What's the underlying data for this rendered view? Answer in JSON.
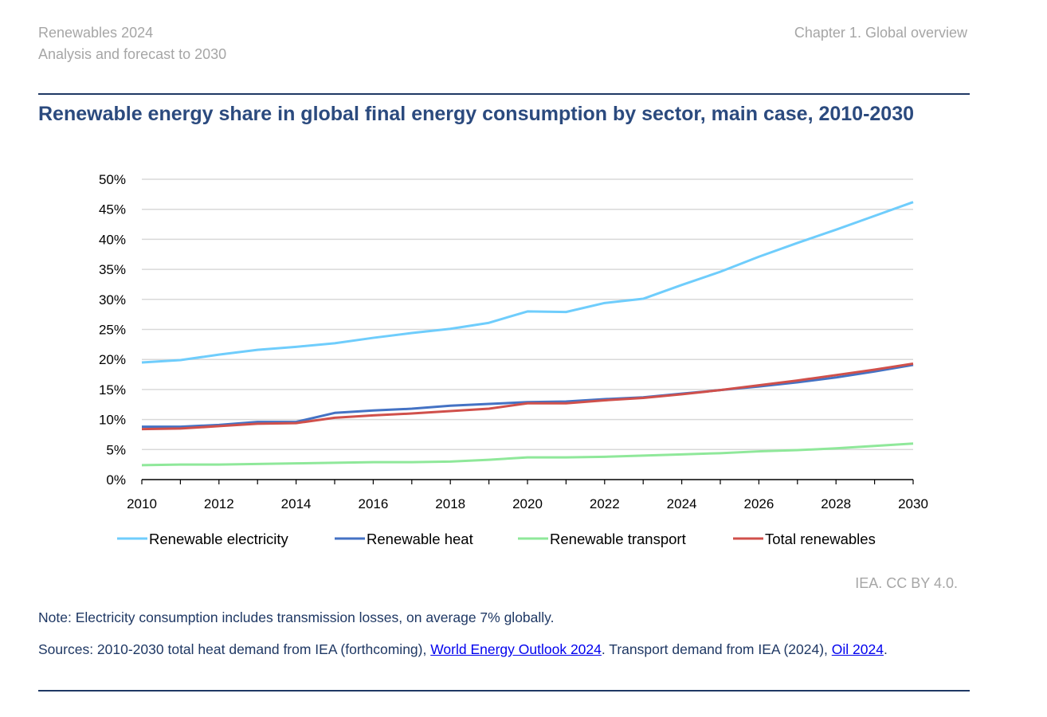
{
  "header": {
    "left_line1": "Renewables 2024",
    "left_line2": "Analysis and forecast to 2030",
    "right": "Chapter 1. Global overview"
  },
  "credit": "IEA. CC BY 4.0.",
  "note": "Note: Electricity consumption includes transmission losses, on average 7% globally.",
  "sources": {
    "prefix": "Sources: 2010-2030 total heat demand from IEA (forthcoming), ",
    "link1": "World Energy Outlook 2024",
    "middle": ". Transport demand from IEA (2024), ",
    "link2": "Oil 2024",
    "suffix": "."
  },
  "chart_data": {
    "type": "line",
    "title": "Renewable energy share in global final energy consumption by sector, main case, 2010-2030",
    "xlabel": "",
    "ylabel": "",
    "x": [
      2010,
      2011,
      2012,
      2013,
      2014,
      2015,
      2016,
      2017,
      2018,
      2019,
      2020,
      2021,
      2022,
      2023,
      2024,
      2025,
      2026,
      2027,
      2028,
      2029,
      2030
    ],
    "xticks": [
      "2010",
      "2012",
      "2014",
      "2016",
      "2018",
      "2020",
      "2022",
      "2024",
      "2026",
      "2028",
      "2030"
    ],
    "yticks": [
      "0%",
      "5%",
      "10%",
      "15%",
      "20%",
      "25%",
      "30%",
      "35%",
      "40%",
      "45%",
      "50%"
    ],
    "ylim": [
      0,
      50
    ],
    "grid": true,
    "legend_position": "bottom",
    "series": [
      {
        "name": "Renewable electricity",
        "color": "#6fcdfc",
        "values": [
          19.5,
          19.9,
          20.8,
          21.6,
          22.1,
          22.7,
          23.6,
          24.4,
          25.1,
          26.1,
          28.0,
          27.9,
          29.4,
          30.1,
          32.4,
          34.6,
          37.1,
          39.4,
          41.6,
          43.9,
          46.2
        ]
      },
      {
        "name": "Renewable heat",
        "color": "#4472c4",
        "values": [
          8.8,
          8.8,
          9.1,
          9.6,
          9.6,
          11.1,
          11.5,
          11.8,
          12.3,
          12.6,
          12.9,
          13.0,
          13.4,
          13.7,
          14.3,
          14.9,
          15.5,
          16.2,
          17.0,
          18.0,
          19.1
        ]
      },
      {
        "name": "Renewable transport",
        "color": "#8fe89a",
        "values": [
          2.4,
          2.5,
          2.5,
          2.6,
          2.7,
          2.8,
          2.9,
          2.9,
          3.0,
          3.3,
          3.7,
          3.7,
          3.8,
          4.0,
          4.2,
          4.4,
          4.7,
          4.9,
          5.2,
          5.6,
          6.0
        ]
      },
      {
        "name": "Total renewables",
        "color": "#d0504b",
        "values": [
          8.4,
          8.5,
          8.9,
          9.3,
          9.4,
          10.3,
          10.7,
          11.0,
          11.4,
          11.8,
          12.7,
          12.7,
          13.2,
          13.6,
          14.2,
          14.9,
          15.7,
          16.5,
          17.4,
          18.3,
          19.3
        ]
      }
    ]
  }
}
